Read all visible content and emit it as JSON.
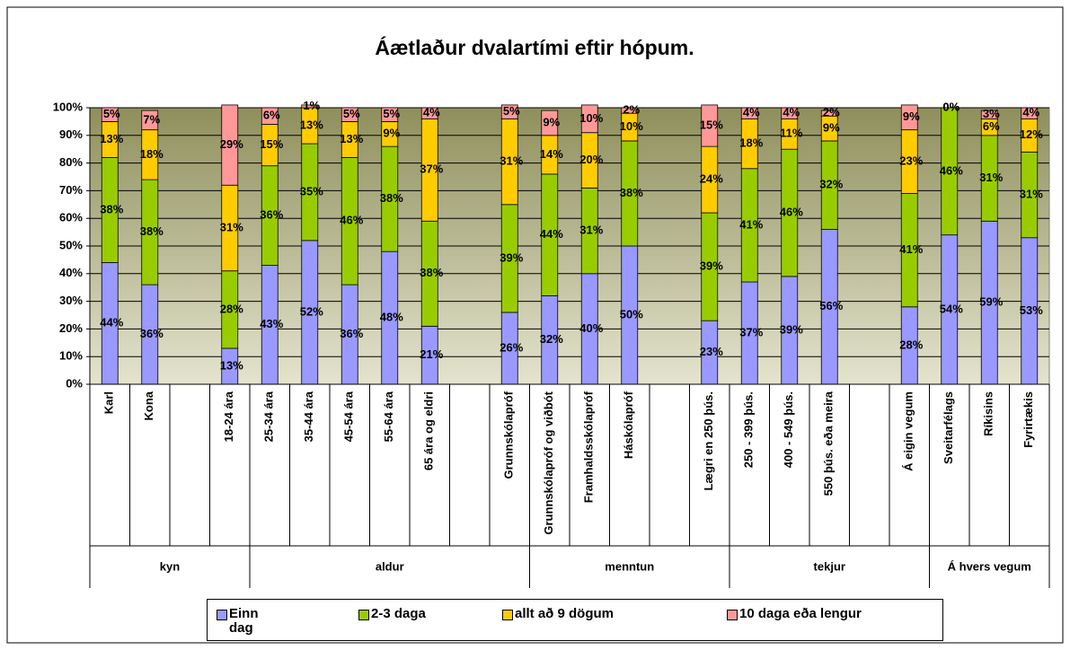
{
  "chart_data": {
    "type": "stacked-bar",
    "title": "Áætlaður dvalartími eftir hópum.",
    "groups": [
      {
        "label": "kyn",
        "categories": [
          "Karl",
          "Kona",
          null,
          "18-24 ára"
        ]
      },
      {
        "label": "aldur",
        "categories": [
          "25-34 ára",
          "35-44 ára",
          "45-54 ára",
          "55-64 ára",
          "65 ára og eldri",
          null,
          "Grunnskólapróf"
        ]
      },
      {
        "label": "menntun",
        "categories": [
          "Grunnskólapróf og viðbót",
          "Framhaldsskólapróf",
          "Háskólapróf",
          null,
          "Lægri en 250 þús."
        ]
      },
      {
        "label": "tekjur",
        "categories": [
          "250 - 399 þús.",
          "400 - 549 þús.",
          "550 þús. eða meira",
          null,
          "Á eigin vegum"
        ]
      },
      {
        "label": "Á hvers vegum",
        "categories": [
          "Sveitarfélags",
          "Ríkisins",
          "Fyrirtækis"
        ]
      }
    ],
    "series": [
      {
        "name": "Einn dag",
        "color": "#9999ff",
        "values": [
          44,
          36,
          null,
          13,
          43,
          52,
          36,
          48,
          21,
          null,
          26,
          32,
          40,
          50,
          null,
          23,
          37,
          39,
          56,
          null,
          28,
          54,
          59,
          53
        ],
        "value_labels": [
          "44%",
          "36%",
          null,
          "13%",
          "43%",
          "52%",
          "36%",
          "48%",
          "21%",
          null,
          "26%",
          "32%",
          "40%",
          "50%",
          null,
          "23%",
          "37%",
          "39%",
          "56%",
          null,
          "28%",
          "54%",
          "59%",
          "53%"
        ]
      },
      {
        "name": "2-3 daga",
        "color": "#99cc00",
        "values": [
          38,
          38,
          null,
          28,
          36,
          35,
          46,
          38,
          38,
          null,
          39,
          44,
          31,
          38,
          null,
          39,
          41,
          46,
          32,
          null,
          41,
          46,
          31,
          31
        ],
        "value_labels": [
          "38%",
          "38%",
          null,
          "28%",
          "36%",
          "35%",
          "46%",
          "38%",
          "38%",
          null,
          "39%",
          "44%",
          "31%",
          "38%",
          null,
          "39%",
          "41%",
          "46%",
          "32%",
          null,
          "41%",
          "46%",
          "31%",
          "31%"
        ]
      },
      {
        "name": "allt að 9 dögum",
        "color": "#ffcc00",
        "values": [
          13,
          18,
          null,
          31,
          15,
          13,
          13,
          9,
          37,
          null,
          31,
          14,
          20,
          10,
          null,
          24,
          18,
          11,
          9,
          null,
          23,
          0,
          6,
          12
        ],
        "value_labels": [
          "13%",
          "18%",
          null,
          "31%",
          "15%",
          "13%",
          "13%",
          "9%",
          "37%",
          null,
          "31%",
          "14%",
          "20%",
          "10%",
          null,
          "24%",
          "18%",
          "11%",
          "9%",
          null,
          "23%",
          "0%",
          "6%",
          "12%"
        ]
      },
      {
        "name": "10 daga eða lengur",
        "color": "#ff9999",
        "values": [
          5,
          7,
          null,
          29,
          6,
          1,
          5,
          5,
          4,
          null,
          5,
          9,
          10,
          2,
          null,
          15,
          4,
          4,
          2,
          null,
          9,
          0,
          3,
          4
        ],
        "value_labels": [
          "5%",
          "7%",
          null,
          "29%",
          "6%",
          "1%",
          "5%",
          "5%",
          "4%",
          null,
          "5%",
          "9%",
          "10%",
          "2%",
          null,
          "15%",
          "4%",
          "4%",
          "2%",
          null,
          "9%",
          "0%",
          "3%",
          "4%"
        ]
      }
    ],
    "ylim": [
      0,
      100
    ],
    "yticks": [
      {
        "value": 0,
        "label": "0%"
      },
      {
        "value": 10,
        "label": "10%"
      },
      {
        "value": 20,
        "label": "20%"
      },
      {
        "value": 30,
        "label": "30%"
      },
      {
        "value": 40,
        "label": "40%"
      },
      {
        "value": 50,
        "label": "50%"
      },
      {
        "value": 60,
        "label": "60%"
      },
      {
        "value": 70,
        "label": "70%"
      },
      {
        "value": 80,
        "label": "80%"
      },
      {
        "value": 90,
        "label": "90%"
      },
      {
        "value": 100,
        "label": "100%"
      }
    ],
    "grid": true,
    "legend": "bottom"
  }
}
